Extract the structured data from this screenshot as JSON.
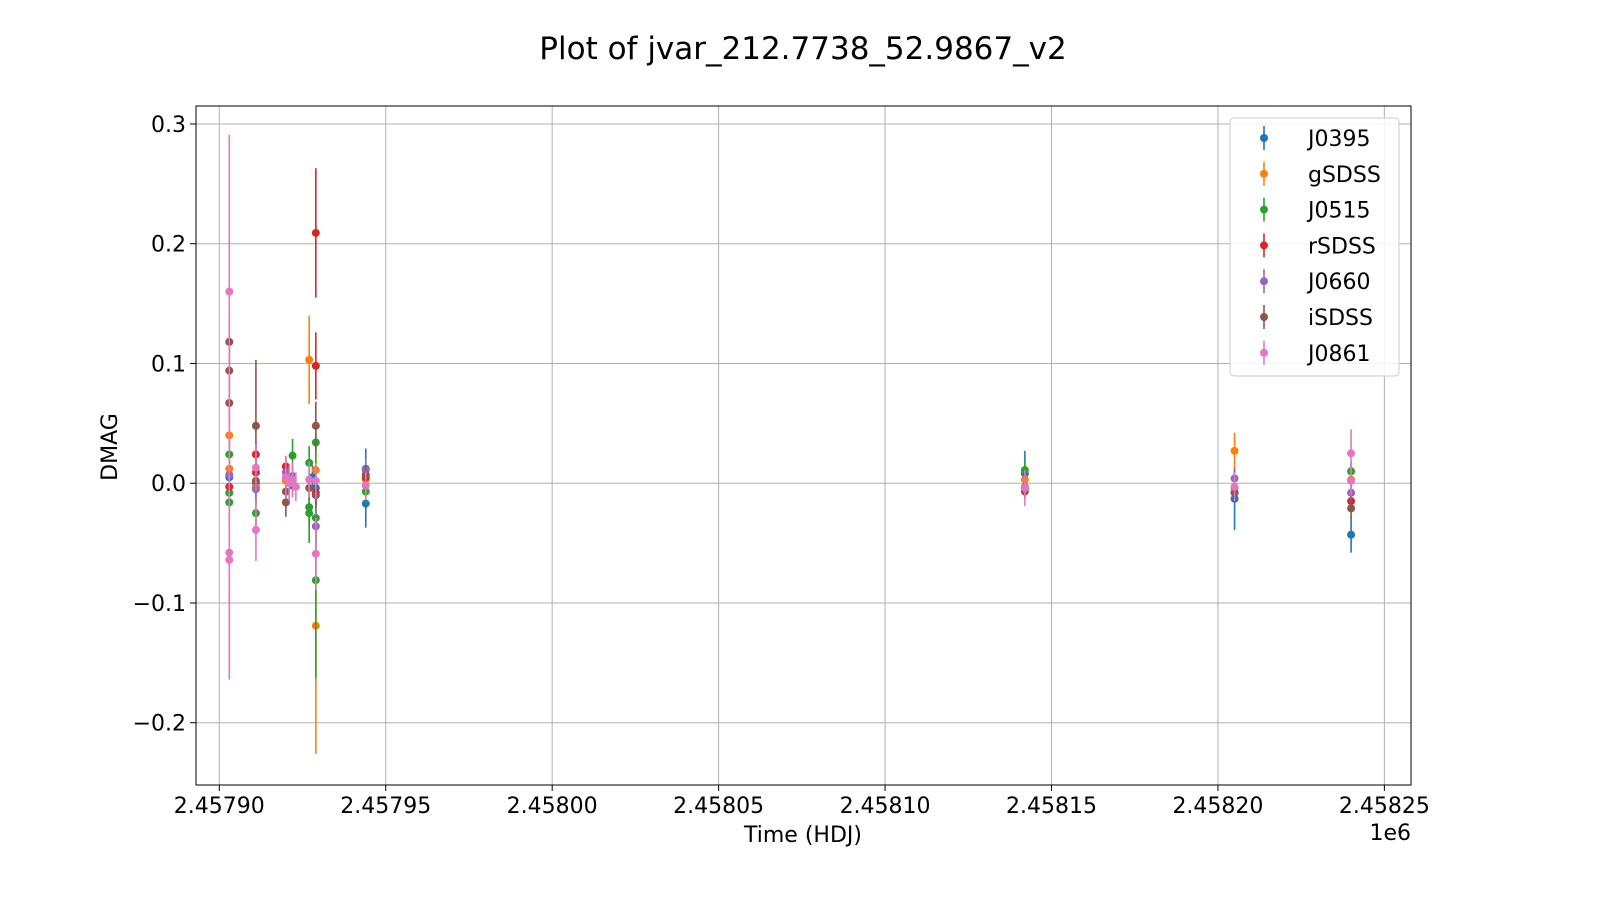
{
  "chart_data": {
    "type": "scatter",
    "title": "Plot of jvar_212.7738_52.9867_v2",
    "xlabel": "Time (HDJ)",
    "ylabel": "DMAG",
    "x_offset_label": "1e6",
    "xlim": [
      2.457893,
      2.458258
    ],
    "ylim": [
      -0.252,
      0.315
    ],
    "x_ticks": [
      2.4579,
      2.45795,
      2.458,
      2.45805,
      2.4581,
      2.45815,
      2.4582,
      2.45825
    ],
    "x_tick_labels": [
      "2.45790",
      "2.45795",
      "2.45800",
      "2.45805",
      "2.45810",
      "2.45815",
      "2.45820",
      "2.45825"
    ],
    "y_ticks": [
      -0.2,
      -0.1,
      0.0,
      0.1,
      0.2,
      0.3
    ],
    "y_tick_labels": [
      "−0.2",
      "−0.1",
      "0.0",
      "0.1",
      "0.2",
      "0.3"
    ],
    "grid": true,
    "legend_position": "top-right",
    "series": [
      {
        "name": "J0395",
        "color": "#1f77b4",
        "points": [
          [
            2.457903,
            0.005,
            0.006
          ],
          [
            2.457911,
            0.0,
            0.008
          ],
          [
            2.45792,
            0.003,
            0.008
          ],
          [
            2.457922,
            -0.002,
            0.008
          ],
          [
            2.457928,
            0.005,
            0.01
          ],
          [
            2.457929,
            -0.004,
            0.012
          ],
          [
            2.457944,
            0.012,
            0.017
          ],
          [
            2.457944,
            -0.017,
            0.02
          ],
          [
            2.458142,
            0.008,
            0.019
          ],
          [
            2.458205,
            -0.013,
            0.026
          ],
          [
            2.45824,
            -0.043,
            0.015
          ]
        ]
      },
      {
        "name": "gSDSS",
        "color": "#ff7f0e",
        "points": [
          [
            2.457903,
            0.04,
            0.02
          ],
          [
            2.457903,
            0.012,
            0.015
          ],
          [
            2.457911,
            -0.003,
            0.015
          ],
          [
            2.45792,
            0.002,
            0.01
          ],
          [
            2.457927,
            0.103,
            0.037
          ],
          [
            2.457929,
            0.011,
            0.02
          ],
          [
            2.457929,
            -0.119,
            0.107
          ],
          [
            2.457944,
            0.003,
            0.01
          ],
          [
            2.458142,
            0.003,
            0.01
          ],
          [
            2.458205,
            0.027,
            0.015
          ],
          [
            2.45824,
            0.003,
            0.01
          ]
        ]
      },
      {
        "name": "J0515",
        "color": "#2ca02c",
        "points": [
          [
            2.457903,
            0.024,
            0.012
          ],
          [
            2.457903,
            -0.016,
            0.012
          ],
          [
            2.457903,
            -0.008,
            0.012
          ],
          [
            2.457911,
            -0.025,
            0.012
          ],
          [
            2.457922,
            0.023,
            0.014
          ],
          [
            2.457927,
            0.017,
            0.014
          ],
          [
            2.457927,
            -0.02,
            0.016
          ],
          [
            2.457927,
            -0.025,
            0.025
          ],
          [
            2.457929,
            0.034,
            0.02
          ],
          [
            2.457929,
            -0.029,
            0.02
          ],
          [
            2.457929,
            -0.081,
            0.082
          ],
          [
            2.457944,
            -0.007,
            0.01
          ],
          [
            2.458142,
            0.011,
            0.008
          ],
          [
            2.458205,
            -0.004,
            0.008
          ],
          [
            2.45824,
            0.01,
            0.008
          ]
        ]
      },
      {
        "name": "rSDSS",
        "color": "#d62728",
        "points": [
          [
            2.457903,
            -0.003,
            0.008
          ],
          [
            2.457911,
            0.024,
            0.01
          ],
          [
            2.457911,
            0.009,
            0.01
          ],
          [
            2.45792,
            0.014,
            0.008
          ],
          [
            2.457929,
            0.209,
            0.054
          ],
          [
            2.457929,
            0.098,
            0.028
          ],
          [
            2.457929,
            -0.008,
            0.01
          ],
          [
            2.457944,
            0.005,
            0.008
          ],
          [
            2.458142,
            -0.005,
            0.006
          ],
          [
            2.458205,
            -0.008,
            0.006
          ],
          [
            2.45824,
            -0.015,
            0.008
          ]
        ]
      },
      {
        "name": "J0660",
        "color": "#9467bd",
        "points": [
          [
            2.457903,
            0.007,
            0.008
          ],
          [
            2.457911,
            -0.005,
            0.01
          ],
          [
            2.45792,
            0.009,
            0.008
          ],
          [
            2.457922,
            0.006,
            0.008
          ],
          [
            2.457929,
            -0.036,
            0.02
          ],
          [
            2.457944,
            0.011,
            0.01
          ],
          [
            2.458142,
            -0.003,
            0.008
          ],
          [
            2.458205,
            0.004,
            0.008
          ],
          [
            2.45824,
            -0.008,
            0.008
          ]
        ]
      },
      {
        "name": "iSDSS",
        "color": "#8c564b",
        "points": [
          [
            2.457903,
            0.118,
            0.02
          ],
          [
            2.457903,
            0.094,
            0.02
          ],
          [
            2.457903,
            0.067,
            0.02
          ],
          [
            2.457911,
            0.048,
            0.055
          ],
          [
            2.457911,
            0.002,
            0.01
          ],
          [
            2.45792,
            -0.016,
            0.012
          ],
          [
            2.45792,
            -0.007,
            0.01
          ],
          [
            2.457927,
            -0.004,
            0.01
          ],
          [
            2.457929,
            0.048,
            0.02
          ],
          [
            2.457929,
            -0.01,
            0.01
          ],
          [
            2.457944,
            0.007,
            0.008
          ],
          [
            2.458142,
            -0.007,
            0.006
          ],
          [
            2.458205,
            -0.008,
            0.006
          ],
          [
            2.45824,
            -0.021,
            0.008
          ]
        ]
      },
      {
        "name": "J0861",
        "color": "#e377c2",
        "points": [
          [
            2.457903,
            0.16,
            0.131
          ],
          [
            2.457903,
            -0.058,
            0.1
          ],
          [
            2.457903,
            -0.064,
            0.1
          ],
          [
            2.457911,
            0.013,
            0.02
          ],
          [
            2.457911,
            -0.039,
            0.026
          ],
          [
            2.45792,
            0.005,
            0.018
          ],
          [
            2.457921,
            0.0,
            0.015
          ],
          [
            2.457922,
            0.003,
            0.015
          ],
          [
            2.457923,
            -0.003,
            0.012
          ],
          [
            2.457927,
            0.003,
            0.015
          ],
          [
            2.457929,
            -0.059,
            0.03
          ],
          [
            2.457929,
            0.002,
            0.015
          ],
          [
            2.457944,
            -0.002,
            0.012
          ],
          [
            2.458142,
            -0.004,
            0.015
          ],
          [
            2.458205,
            -0.003,
            0.012
          ],
          [
            2.45824,
            0.025,
            0.02
          ],
          [
            2.45824,
            0.002,
            0.012
          ]
        ]
      }
    ]
  }
}
